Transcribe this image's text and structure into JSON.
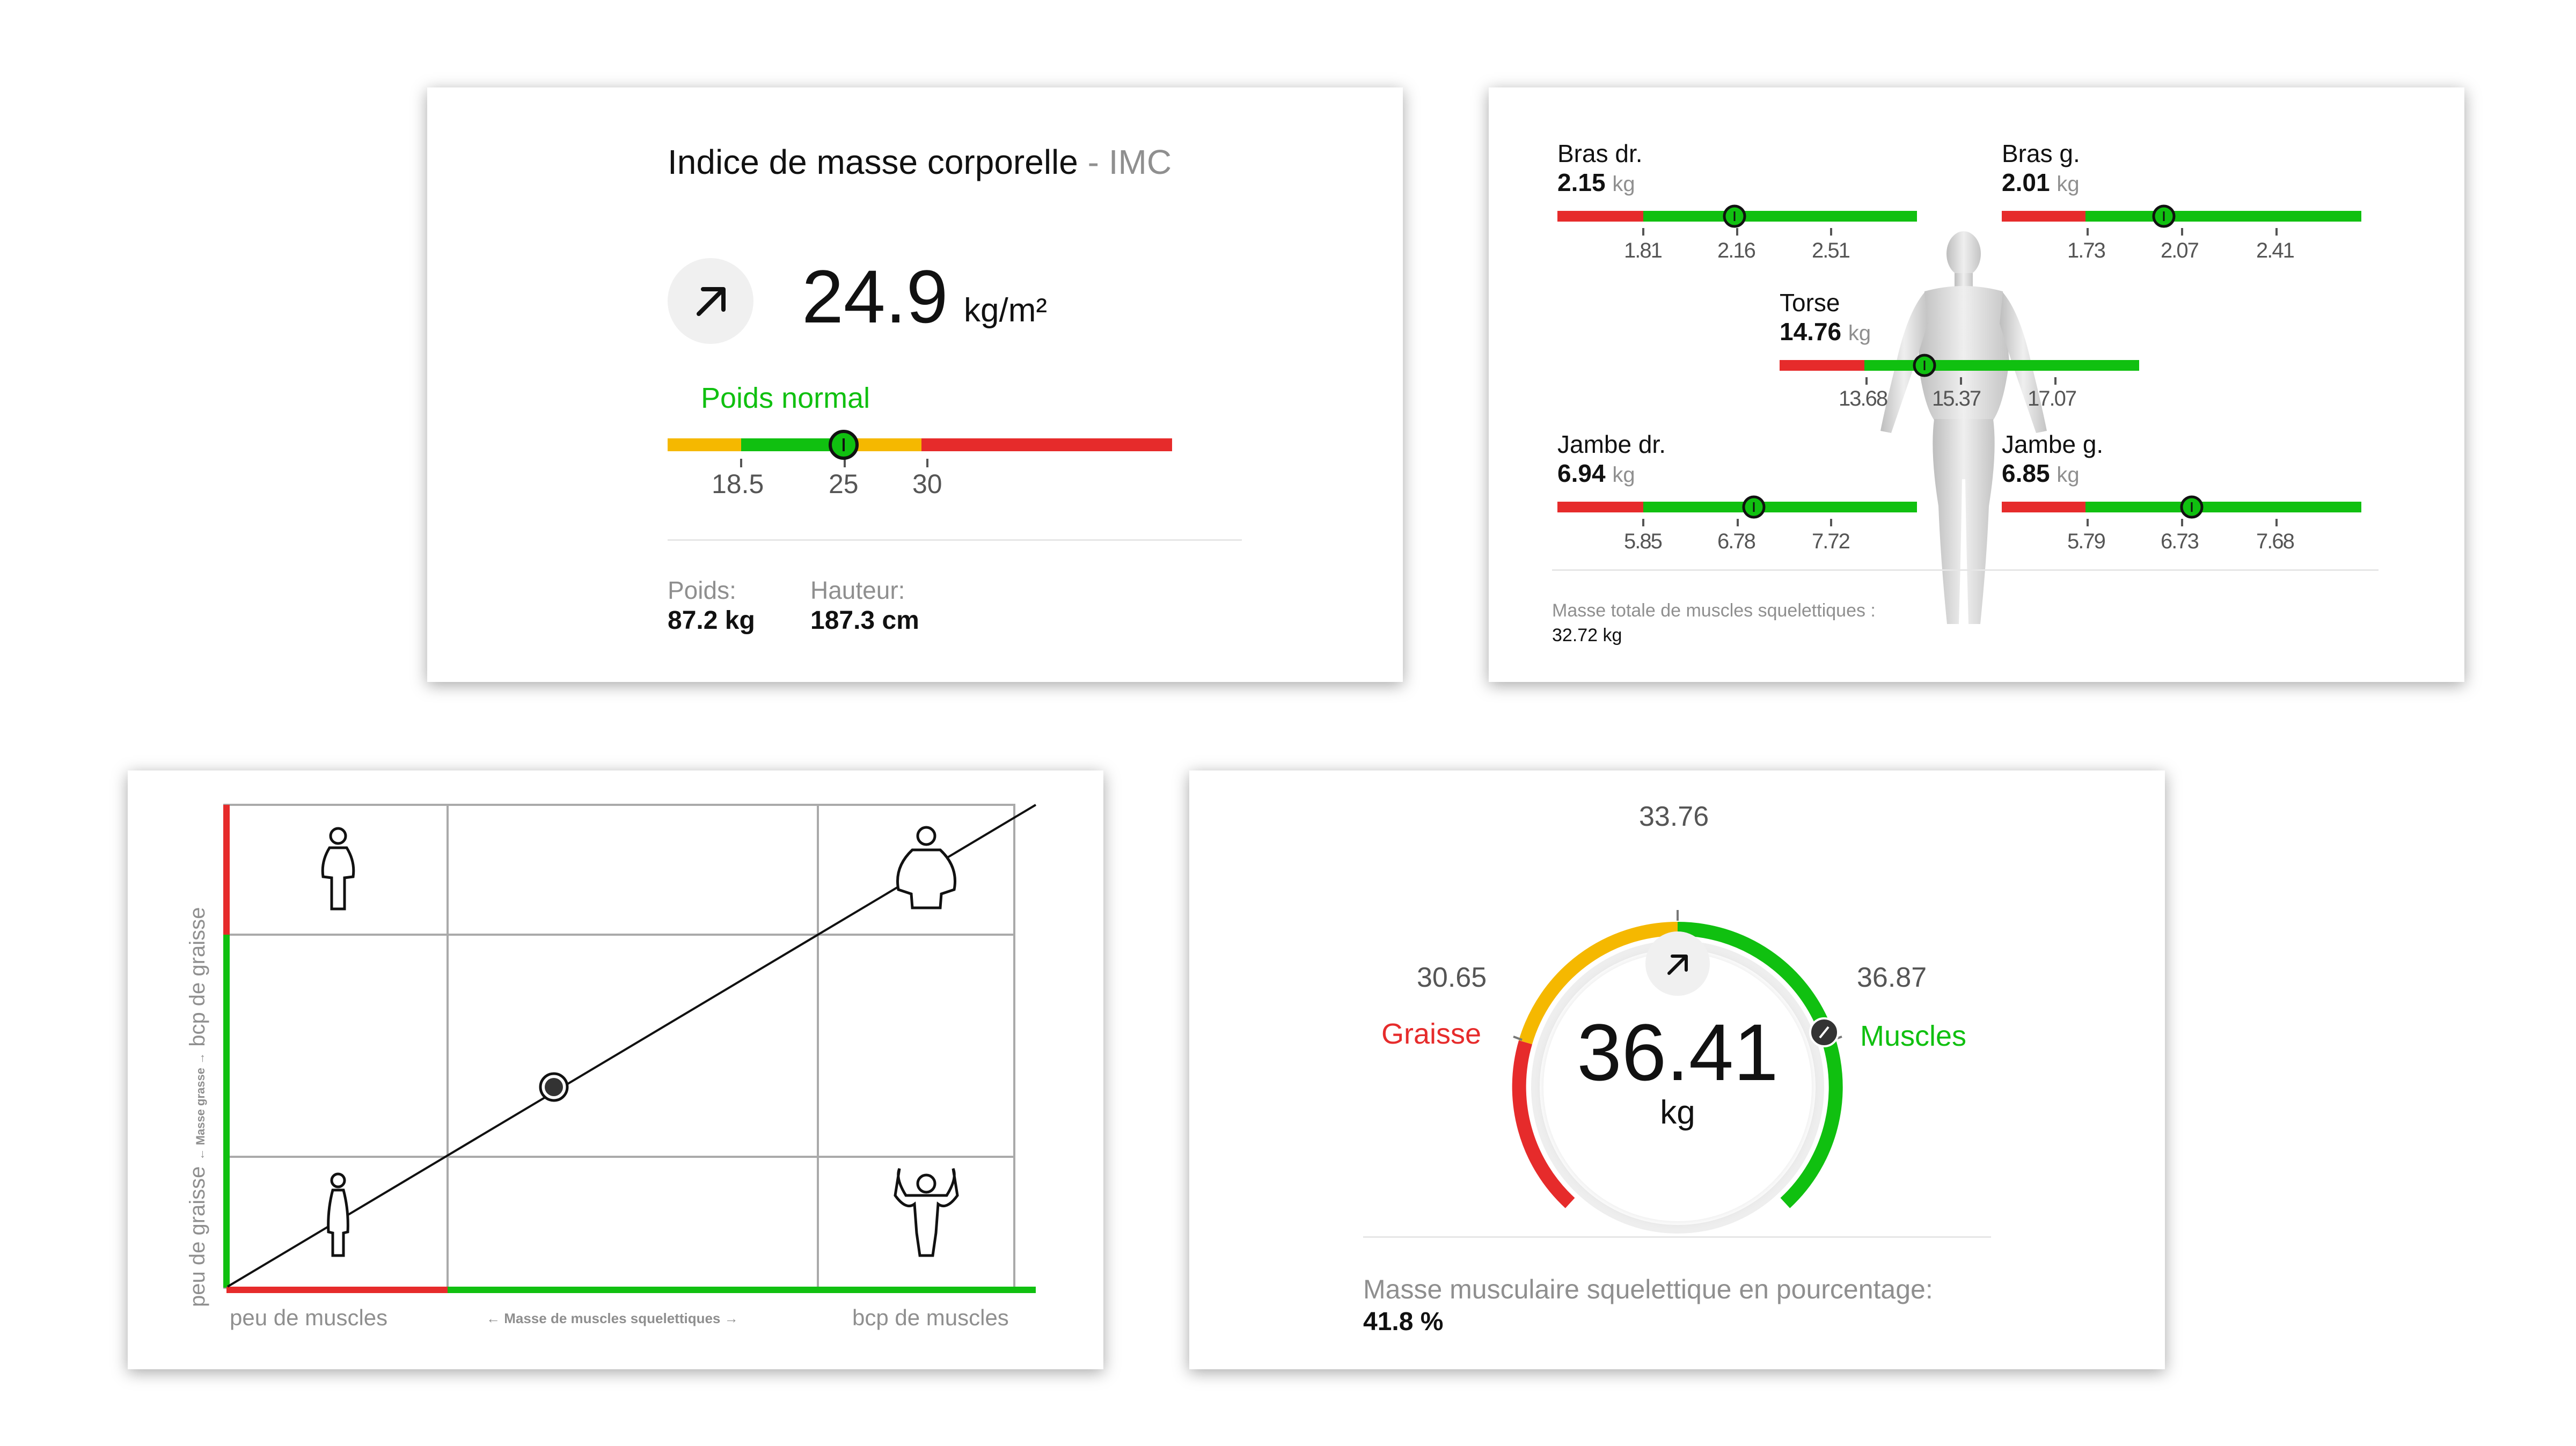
{
  "imc": {
    "title": "Indice de masse corporelle",
    "title_sep": " - ",
    "title_suffix": "IMC",
    "trend_icon": "arrow-up-right-icon",
    "value": "24.9",
    "unit": "kg/m²",
    "status_label": "Poids normal",
    "status_color": "#10c010",
    "scale_value": 24.9,
    "ticks": [
      "18.5",
      "25",
      "30"
    ],
    "weight_label": "Poids:",
    "weight_value": "87.2 kg",
    "height_label": "Hauteur:",
    "height_value": "187.3 cm"
  },
  "muscles": {
    "segments": {
      "arm_right": {
        "name": "Bras dr.",
        "value": "2.15",
        "unit": "kg",
        "ticks": [
          "1.81",
          "2.16",
          "2.51"
        ]
      },
      "arm_left": {
        "name": "Bras g.",
        "value": "2.01",
        "unit": "kg",
        "ticks": [
          "1.73",
          "2.07",
          "2.41"
        ]
      },
      "torso": {
        "name": "Torse",
        "value": "14.76",
        "unit": "kg",
        "ticks": [
          "13.68",
          "15.37",
          "17.07"
        ]
      },
      "leg_right": {
        "name": "Jambe dr.",
        "value": "6.94",
        "unit": "kg",
        "ticks": [
          "5.85",
          "6.78",
          "7.72"
        ]
      },
      "leg_left": {
        "name": "Jambe g.",
        "value": "6.85",
        "unit": "kg",
        "ticks": [
          "5.79",
          "6.73",
          "7.68"
        ]
      }
    },
    "total_label": "Masse totale de muscles squelettiques :",
    "total_value": "32.72 kg"
  },
  "matrix": {
    "y_label_low": "peu de graisse",
    "y_label_mid": "← Masse grasse →",
    "y_label_high": "bcp de graisse",
    "x_label_low": "peu de muscles",
    "x_label_mid": "← Masse de muscles squelettiques →",
    "x_label_high": "bcp de muscles"
  },
  "gauge": {
    "top_value": "33.76",
    "left_value": "30.65",
    "right_value": "36.87",
    "left_label": "Graisse",
    "right_label": "Muscles",
    "value": "36.41",
    "unit": "kg",
    "trend_icon": "arrow-up-right-icon",
    "percent_label": "Masse musculaire squelettique en pourcentage:",
    "percent_value": "41.8 %"
  },
  "colors": {
    "green": "#10c010",
    "red": "#e62b2b",
    "yellow": "#f5b800",
    "gray_text": "#8f8f8f"
  }
}
